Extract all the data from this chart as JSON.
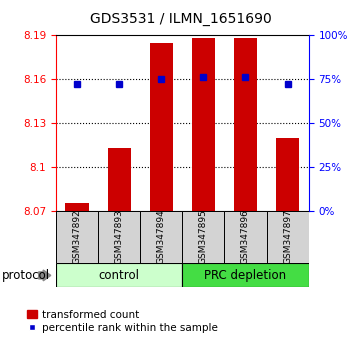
{
  "title": "GDS3531 / ILMN_1651690",
  "samples": [
    "GSM347892",
    "GSM347893",
    "GSM347894",
    "GSM347895",
    "GSM347896",
    "GSM347897"
  ],
  "bar_values": [
    8.075,
    8.113,
    8.185,
    8.188,
    8.188,
    8.12
  ],
  "percentile_values": [
    72,
    72,
    75,
    76,
    76,
    72
  ],
  "ylim_left": [
    8.07,
    8.19
  ],
  "ylim_right": [
    0,
    100
  ],
  "yticks_left": [
    8.07,
    8.1,
    8.13,
    8.16,
    8.19
  ],
  "yticks_right": [
    0,
    25,
    50,
    75,
    100
  ],
  "bar_color": "#cc0000",
  "dot_color": "#0000cc",
  "bar_bottom": 8.07,
  "groups": [
    {
      "label": "control",
      "indices": [
        0,
        1,
        2
      ],
      "color": "#ccffcc"
    },
    {
      "label": "PRC depletion",
      "indices": [
        3,
        4,
        5
      ],
      "color": "#44dd44"
    }
  ],
  "protocol_label": "protocol",
  "legend_bar_label": "transformed count",
  "legend_dot_label": "percentile rank within the sample",
  "title_fontsize": 10,
  "tick_fontsize": 7.5,
  "sample_fontsize": 6.5,
  "group_fontsize": 8.5,
  "legend_fontsize": 7.5
}
